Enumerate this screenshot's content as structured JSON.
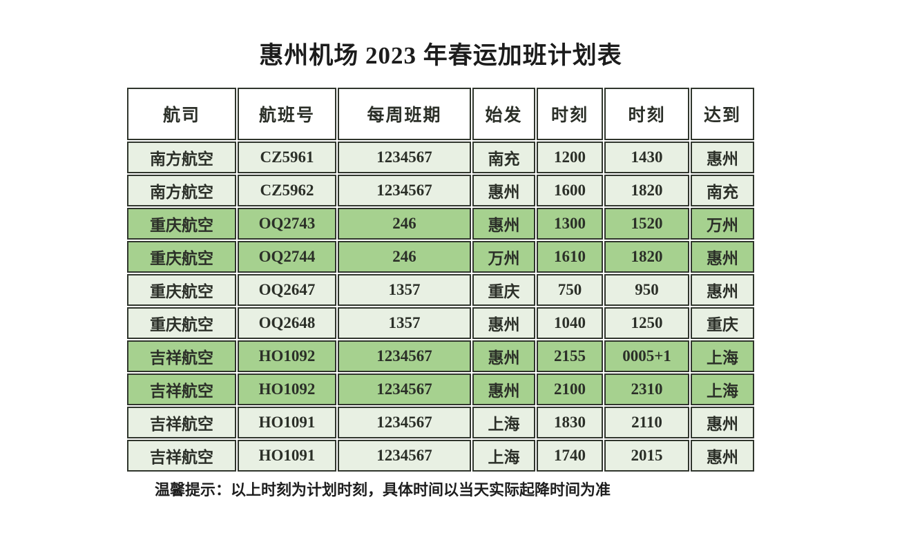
{
  "page": {
    "title": "惠州机场 2023 年春运加班计划表",
    "footer_note": "温馨提示：以上时刻为计划时刻，具体时间以当天实际起降时间为准"
  },
  "table": {
    "columns": [
      "航司",
      "航班号",
      "每周班期",
      "始发",
      "时刻",
      "时刻",
      "达到"
    ],
    "rows": [
      {
        "airline": "南方航空",
        "flight_no": "CZ5961",
        "weekly_schedule": "1234567",
        "origin": "南充",
        "dep_time": "1200",
        "arr_time": "1430",
        "destination": "惠州",
        "highlight": false
      },
      {
        "airline": "南方航空",
        "flight_no": "CZ5962",
        "weekly_schedule": "1234567",
        "origin": "惠州",
        "dep_time": "1600",
        "arr_time": "1820",
        "destination": "南充",
        "highlight": false
      },
      {
        "airline": "重庆航空",
        "flight_no": "OQ2743",
        "weekly_schedule": "246",
        "origin": "惠州",
        "dep_time": "1300",
        "arr_time": "1520",
        "destination": "万州",
        "highlight": true
      },
      {
        "airline": "重庆航空",
        "flight_no": "OQ2744",
        "weekly_schedule": "246",
        "origin": "万州",
        "dep_time": "1610",
        "arr_time": "1820",
        "destination": "惠州",
        "highlight": true
      },
      {
        "airline": "重庆航空",
        "flight_no": "OQ2647",
        "weekly_schedule": "1357",
        "origin": "重庆",
        "dep_time": "750",
        "arr_time": "950",
        "destination": "惠州",
        "highlight": false
      },
      {
        "airline": "重庆航空",
        "flight_no": "OQ2648",
        "weekly_schedule": "1357",
        "origin": "惠州",
        "dep_time": "1040",
        "arr_time": "1250",
        "destination": "重庆",
        "highlight": false
      },
      {
        "airline": "吉祥航空",
        "flight_no": "HO1092",
        "weekly_schedule": "1234567",
        "origin": "惠州",
        "dep_time": "2155",
        "arr_time": "0005+1",
        "destination": "上海",
        "highlight": true
      },
      {
        "airline": "吉祥航空",
        "flight_no": "HO1092",
        "weekly_schedule": "1234567",
        "origin": "惠州",
        "dep_time": "2100",
        "arr_time": "2310",
        "destination": "上海",
        "highlight": true
      },
      {
        "airline": "吉祥航空",
        "flight_no": "HO1091",
        "weekly_schedule": "1234567",
        "origin": "上海",
        "dep_time": "1830",
        "arr_time": "2110",
        "destination": "惠州",
        "highlight": false
      },
      {
        "airline": "吉祥航空",
        "flight_no": "HO1091",
        "weekly_schedule": "1234567",
        "origin": "上海",
        "dep_time": "1740",
        "arr_time": "2015",
        "destination": "惠州",
        "highlight": false
      }
    ]
  },
  "colors": {
    "row_light": "#e8f0e3",
    "row_highlight": "#a6d18f",
    "header_bg": "#ffffff",
    "border": "#2f352c",
    "text": "#2b2f28"
  }
}
